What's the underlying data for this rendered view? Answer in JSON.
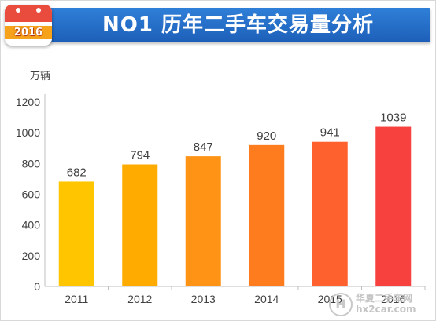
{
  "header": {
    "title": "NO1 历年二手车交易量分析",
    "badge_year": "2016"
  },
  "watermark": {
    "logo_glyph": "H",
    "name_cn": "华夏二手车网",
    "domain": "hx2car.com"
  },
  "chart_data": {
    "type": "bar",
    "title": "NO1 历年二手车交易量分析",
    "ylabel": "万辆",
    "xlabel": "",
    "categories": [
      "2011",
      "2012",
      "2013",
      "2014",
      "2015",
      "2016"
    ],
    "values": [
      682,
      794,
      847,
      920,
      941,
      1039
    ],
    "ylim": [
      0,
      1200
    ],
    "yticks": [
      0,
      200,
      400,
      600,
      800,
      1000,
      1200
    ],
    "grid": false,
    "legend": "none",
    "colors": [
      "#ffc600",
      "#ffab00",
      "#ff9315",
      "#ff7c1e",
      "#ff612e",
      "#f7413e"
    ],
    "axis_color": "#bfbfbf",
    "label_color": "#404040"
  }
}
